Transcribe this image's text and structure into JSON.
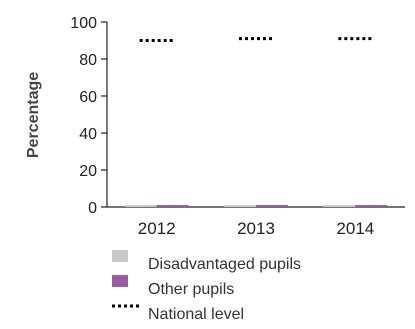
{
  "chart_data": {
    "type": "bar",
    "categories": [
      "2012",
      "2013",
      "2014"
    ],
    "series": [
      {
        "name": "Disadvantaged pupils",
        "values": [
          0,
          0,
          0
        ],
        "color": "#c8c8c8"
      },
      {
        "name": "Other pupils",
        "values": [
          0,
          0,
          0
        ],
        "color": "#9b59a6"
      }
    ],
    "reference": {
      "name": "National level",
      "values": [
        90,
        91,
        91
      ],
      "color": "#000000",
      "style": "dotted"
    },
    "title": "",
    "xlabel": "",
    "ylabel": "Percentage",
    "ylim": [
      0,
      100
    ],
    "yticks": [
      0,
      20,
      40,
      60,
      80,
      100
    ],
    "grid": false,
    "legend_placement": "bottom"
  }
}
